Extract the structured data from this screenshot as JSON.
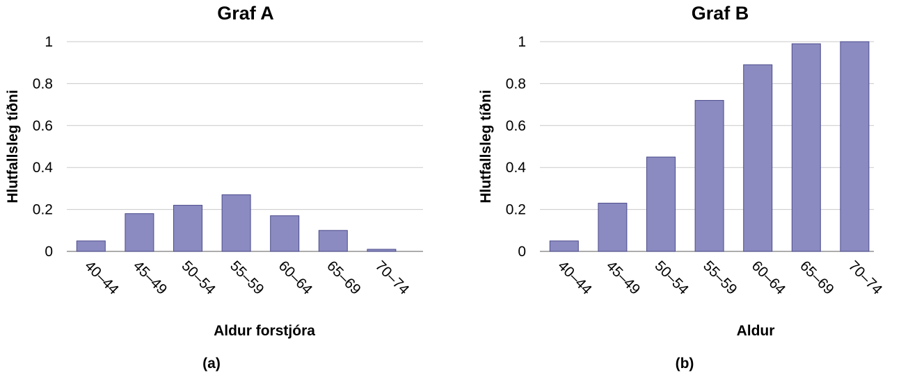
{
  "chart_data": [
    {
      "type": "bar",
      "title": "Graf A",
      "panel_label": "(a)",
      "xlabel": "Aldur forstjóra",
      "ylabel": "Hlutfallsleg tíðni",
      "categories": [
        "40–44",
        "45–49",
        "50–54",
        "55–59",
        "60–64",
        "65–69",
        "70–74"
      ],
      "values": [
        0.05,
        0.18,
        0.22,
        0.27,
        0.17,
        0.1,
        0.01
      ],
      "ylim": [
        0,
        1
      ],
      "yticks": [
        0,
        0.2,
        0.4,
        0.6,
        0.8,
        1
      ],
      "ytick_labels": [
        "0",
        "0.2",
        "0.4",
        "0.6",
        "0.8",
        "1"
      ],
      "grid": true,
      "bar_color": "#8b8bc1",
      "bar_edge_color": "#4a4a8c"
    },
    {
      "type": "bar",
      "title": "Graf B",
      "panel_label": "(b)",
      "xlabel": "Aldur",
      "ylabel": "Hlutfallsleg tíðni",
      "categories": [
        "40–44",
        "45–49",
        "50–54",
        "55–59",
        "60–64",
        "65–69",
        "70–74"
      ],
      "values": [
        0.05,
        0.23,
        0.45,
        0.72,
        0.89,
        0.99,
        1.0
      ],
      "ylim": [
        0,
        1
      ],
      "yticks": [
        0,
        0.2,
        0.4,
        0.6,
        0.8,
        1
      ],
      "ytick_labels": [
        "0",
        "0.2",
        "0.4",
        "0.6",
        "0.8",
        "1"
      ],
      "grid": true,
      "bar_color": "#8b8bc1",
      "bar_edge_color": "#4a4a8c"
    }
  ]
}
